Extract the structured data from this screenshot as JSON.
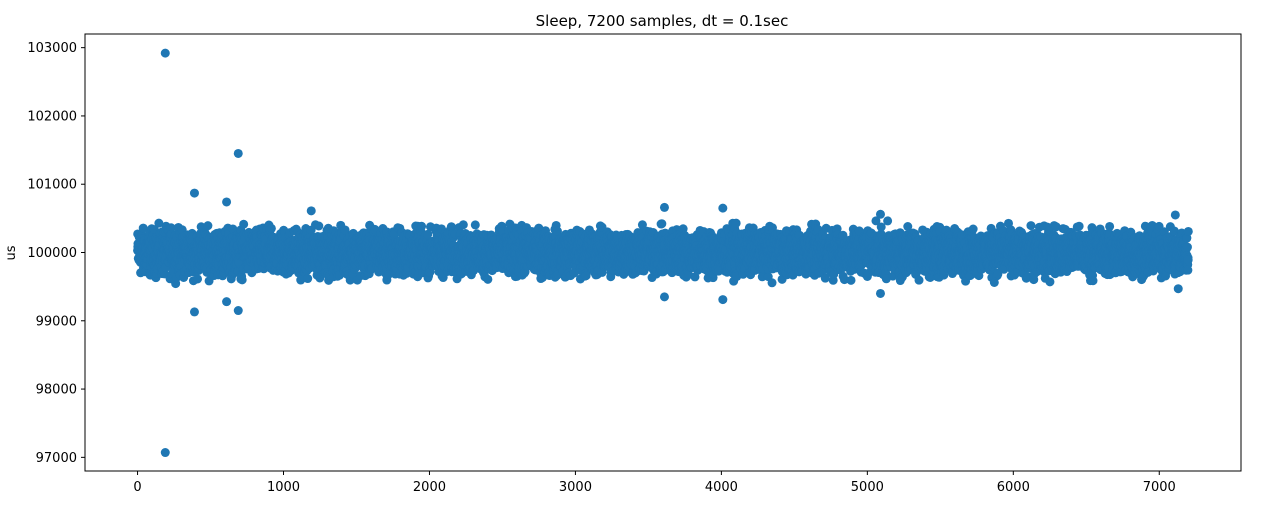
{
  "chart_data": {
    "type": "scatter",
    "title": "Sleep, 7200 samples, dt = 0.1sec",
    "xlabel": "",
    "ylabel": "us",
    "xlim": [
      -360,
      7560
    ],
    "ylim": [
      96800,
      103200
    ],
    "xticks": [
      0,
      1000,
      2000,
      3000,
      4000,
      5000,
      6000,
      7000
    ],
    "yticks": [
      97000,
      98000,
      99000,
      100000,
      101000,
      102000,
      103000
    ],
    "grid": false,
    "marker_color": "#1f77b4",
    "outliers": [
      {
        "x": 190,
        "y": 102920
      },
      {
        "x": 190,
        "y": 97070
      },
      {
        "x": 690,
        "y": 101450
      },
      {
        "x": 390,
        "y": 100870
      },
      {
        "x": 610,
        "y": 100740
      },
      {
        "x": 1190,
        "y": 100610
      },
      {
        "x": 3610,
        "y": 100660
      },
      {
        "x": 4010,
        "y": 100650
      },
      {
        "x": 5090,
        "y": 100560
      },
      {
        "x": 7110,
        "y": 100550
      },
      {
        "x": 390,
        "y": 99130
      },
      {
        "x": 610,
        "y": 99280
      },
      {
        "x": 690,
        "y": 99150
      },
      {
        "x": 3610,
        "y": 99350
      },
      {
        "x": 4010,
        "y": 99310
      },
      {
        "x": 5090,
        "y": 99400
      },
      {
        "x": 7130,
        "y": 99470
      }
    ],
    "bulk": {
      "x_range": [
        0,
        7199
      ],
      "n": 7200,
      "center": 100000,
      "spread": 480
    }
  }
}
